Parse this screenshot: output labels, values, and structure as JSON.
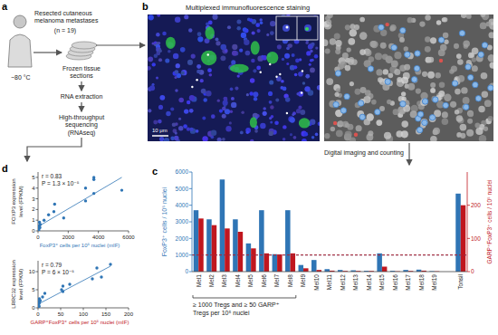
{
  "panel_labels": [
    "a",
    "b",
    "c",
    "d"
  ],
  "workflow": {
    "patient": "Resected cutaneous melanoma metastases",
    "n": "(n = 19)",
    "temperature": "−80 °C",
    "sections": "Frozen tissue sections",
    "extraction": "RNA extraction",
    "sequencing": "High-throughput sequencing (RNAseq)",
    "staining": "Multiplexed immunofluorescence staining",
    "scale_bar": "10 μm",
    "imaging": "Digital imaging and counting"
  },
  "chart_data": [
    {
      "type": "bar",
      "categories": [
        "Mel1",
        "Mel2",
        "Mel3",
        "Mel4",
        "Mel5",
        "Mel6",
        "Mel7",
        "Mel8",
        "Mel9",
        "Mel10",
        "Mel11",
        "Mel12",
        "Mel13",
        "Mel14",
        "Mel15",
        "Mel16",
        "Mel17",
        "Mel18",
        "Mel19",
        null,
        "Tonsil"
      ],
      "ylabel": "FoxP3⁺ cells / 10⁵ nuclei",
      "y2label": "GARP⁺FoxP3⁺ cells / 10⁵ nuclei",
      "series": [
        {
          "color": "#2f75b5",
          "values": [
            3700,
            3150,
            5550,
            3150,
            1700,
            3700,
            1050,
            3700,
            400,
            700,
            150,
            100,
            80,
            50,
            1100,
            50,
            100,
            120,
            30,
            null,
            4700
          ]
        },
        {
          "color": "#c0161e",
          "axis": "y2",
          "values": [
            160,
            140,
            130,
            120,
            70,
            55,
            52,
            55,
            10,
            5,
            3,
            2,
            2,
            2,
            15,
            1,
            2,
            3,
            1,
            null,
            200
          ]
        }
      ],
      "ylim": [
        0,
        6000
      ],
      "yticks": [
        0,
        1000,
        2000,
        3000,
        4000,
        5000,
        6000
      ],
      "y2lim": [
        0,
        300
      ],
      "y2ticks": [
        0,
        100,
        200
      ],
      "thresholds": [
        {
          "axis": "y",
          "value": 1000,
          "line_style": "dashed"
        },
        {
          "axis": "y2",
          "value": 50,
          "line_style": "dashed"
        }
      ],
      "annotation": {
        "text": "≥ 1000 Tregs and ≥ 50 GARP⁺ Tregs per 10⁵ nuclei",
        "categories": [
          "Mel1",
          "Mel8"
        ]
      }
    },
    {
      "type": "scatter",
      "xlabel": "FoxP3⁺ cells per 10⁵ nuclei (mIF)",
      "ylabel": "FOXP3 expression level (FPKM)",
      "color": "#2f75b5",
      "marker": "circle",
      "x": [
        30,
        50,
        50,
        80,
        100,
        100,
        120,
        150,
        400,
        700,
        1050,
        1100,
        1700,
        3150,
        3150,
        3700,
        3700,
        3700,
        5550
      ],
      "values": [
        0.2,
        0.3,
        0.1,
        0.5,
        0.4,
        0.8,
        0.3,
        0.6,
        1.0,
        1.5,
        1.8,
        2.5,
        1.2,
        2.8,
        4.0,
        3.5,
        4.8,
        5.0,
        3.8
      ],
      "xlim": [
        0,
        6000
      ],
      "xticks": [
        0,
        2000,
        4000,
        6000
      ],
      "ylim": [
        0,
        5.5
      ],
      "yticks": [
        0,
        1,
        2,
        3,
        4,
        5
      ],
      "trend_line": {
        "x": [
          0,
          5550
        ],
        "values": [
          0.4,
          5.0
        ]
      },
      "annotations": [
        "r = 0.83",
        "P = 1.3 × 10⁻⁵"
      ]
    },
    {
      "type": "scatter",
      "xlabel": "GARP⁺FoxP3⁺ cells per 10⁵ nuclei (mIF)",
      "ylabel": "LRRC32 expression level (FPKM)",
      "color": "#2f75b5",
      "marker": "circle",
      "x": [
        1,
        1,
        2,
        2,
        2,
        2,
        3,
        3,
        5,
        10,
        15,
        52,
        55,
        55,
        70,
        120,
        130,
        140,
        160
      ],
      "values": [
        0.3,
        0.8,
        0.5,
        1.2,
        1.8,
        0.4,
        1.5,
        2.5,
        2.0,
        3.0,
        4.0,
        5.0,
        6.0,
        4.5,
        6.5,
        8.0,
        11.0,
        8.5,
        12.0
      ],
      "xlim": [
        0,
        200
      ],
      "xticks": [
        0,
        50,
        100,
        150,
        200
      ],
      "ylim": [
        0,
        13
      ],
      "yticks": [
        0,
        5,
        10
      ],
      "trend_line": {
        "x": [
          0,
          160
        ],
        "values": [
          1.0,
          11.5
        ]
      },
      "annotations": [
        "r = 0.79",
        "P = 6 × 10⁻⁵"
      ]
    }
  ]
}
